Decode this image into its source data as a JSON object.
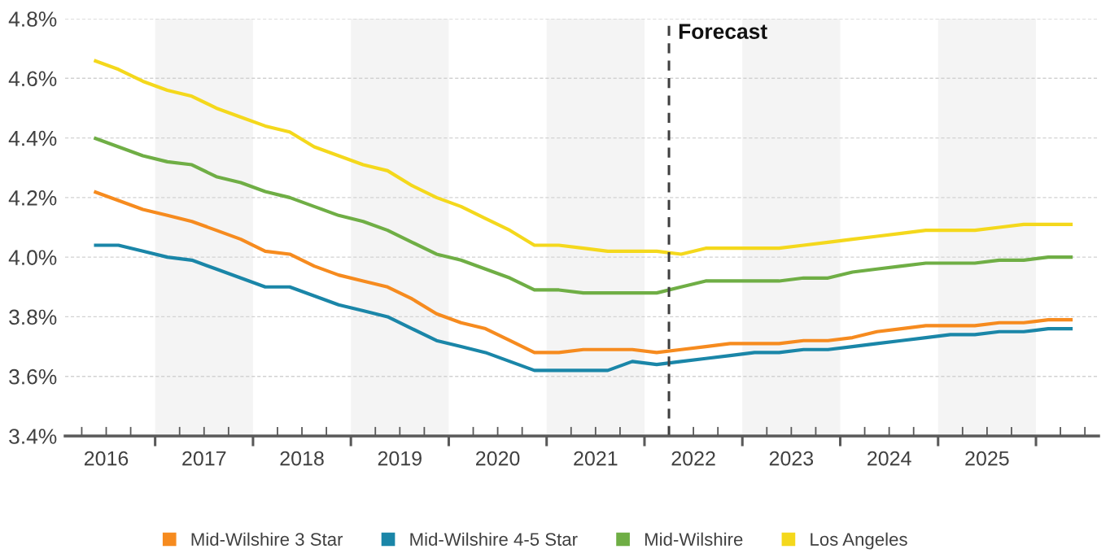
{
  "chart_data": {
    "type": "line",
    "x": [
      2016.375,
      2016.625,
      2016.875,
      2017.125,
      2017.375,
      2017.625,
      2017.875,
      2018.125,
      2018.375,
      2018.625,
      2018.875,
      2019.125,
      2019.375,
      2019.625,
      2019.875,
      2020.125,
      2020.375,
      2020.625,
      2020.875,
      2021.125,
      2021.375,
      2021.625,
      2021.875,
      2022.125,
      2022.375,
      2022.625,
      2022.875,
      2023.125,
      2023.375,
      2023.625,
      2023.875,
      2024.125,
      2024.375,
      2024.625,
      2024.875,
      2025.125,
      2025.375,
      2025.625,
      2025.875,
      2026.125,
      2026.375
    ],
    "series": [
      {
        "name": "Mid-Wilshire 3 Star",
        "color": "#f68b1f",
        "values": [
          4.22,
          4.19,
          4.16,
          4.14,
          4.12,
          4.09,
          4.06,
          4.02,
          4.01,
          3.97,
          3.94,
          3.92,
          3.9,
          3.86,
          3.81,
          3.78,
          3.76,
          3.72,
          3.68,
          3.68,
          3.69,
          3.69,
          3.69,
          3.68,
          3.69,
          3.7,
          3.71,
          3.71,
          3.71,
          3.72,
          3.72,
          3.73,
          3.75,
          3.76,
          3.77,
          3.77,
          3.77,
          3.78,
          3.78,
          3.79,
          3.79
        ]
      },
      {
        "name": "Mid-Wilshire 4-5 Star",
        "color": "#1a86a8",
        "values": [
          4.04,
          4.04,
          4.02,
          4.0,
          3.99,
          3.96,
          3.93,
          3.9,
          3.9,
          3.87,
          3.84,
          3.82,
          3.8,
          3.76,
          3.72,
          3.7,
          3.68,
          3.65,
          3.62,
          3.62,
          3.62,
          3.62,
          3.65,
          3.64,
          3.65,
          3.66,
          3.67,
          3.68,
          3.68,
          3.69,
          3.69,
          3.7,
          3.71,
          3.72,
          3.73,
          3.74,
          3.74,
          3.75,
          3.75,
          3.76,
          3.76
        ]
      },
      {
        "name": "Mid-Wilshire",
        "color": "#6fae45",
        "values": [
          4.4,
          4.37,
          4.34,
          4.32,
          4.31,
          4.27,
          4.25,
          4.22,
          4.2,
          4.17,
          4.14,
          4.12,
          4.09,
          4.05,
          4.01,
          3.99,
          3.96,
          3.93,
          3.89,
          3.89,
          3.88,
          3.88,
          3.88,
          3.88,
          3.9,
          3.92,
          3.92,
          3.92,
          3.92,
          3.93,
          3.93,
          3.95,
          3.96,
          3.97,
          3.98,
          3.98,
          3.98,
          3.99,
          3.99,
          4.0,
          4.0
        ]
      },
      {
        "name": "Los Angeles",
        "color": "#f4d81c",
        "values": [
          4.66,
          4.63,
          4.59,
          4.56,
          4.54,
          4.5,
          4.47,
          4.44,
          4.42,
          4.37,
          4.34,
          4.31,
          4.29,
          4.24,
          4.2,
          4.17,
          4.13,
          4.09,
          4.04,
          4.04,
          4.03,
          4.02,
          4.02,
          4.02,
          4.01,
          4.03,
          4.03,
          4.03,
          4.03,
          4.04,
          4.05,
          4.06,
          4.07,
          4.08,
          4.09,
          4.09,
          4.09,
          4.1,
          4.11,
          4.11,
          4.11
        ]
      }
    ],
    "xlim": [
      2016.08,
      2026.64
    ],
    "ylim": [
      3.4,
      4.8
    ],
    "xticks": [
      {
        "value": 2016.25,
        "label": null
      },
      {
        "value": 2016.5,
        "label": "2016"
      },
      {
        "value": 2016.75,
        "label": null
      },
      {
        "value": 2017,
        "label": null
      },
      {
        "value": 2017.25,
        "label": null
      },
      {
        "value": 2017.5,
        "label": "2017"
      },
      {
        "value": 2017.75,
        "label": null
      },
      {
        "value": 2018,
        "label": null
      },
      {
        "value": 2018.25,
        "label": null
      },
      {
        "value": 2018.5,
        "label": "2018"
      },
      {
        "value": 2018.75,
        "label": null
      },
      {
        "value": 2019,
        "label": null
      },
      {
        "value": 2019.25,
        "label": null
      },
      {
        "value": 2019.5,
        "label": "2019"
      },
      {
        "value": 2019.75,
        "label": null
      },
      {
        "value": 2020,
        "label": null
      },
      {
        "value": 2020.25,
        "label": null
      },
      {
        "value": 2020.5,
        "label": "2020"
      },
      {
        "value": 2020.75,
        "label": null
      },
      {
        "value": 2021,
        "label": null
      },
      {
        "value": 2021.25,
        "label": null
      },
      {
        "value": 2021.5,
        "label": "2021"
      },
      {
        "value": 2021.75,
        "label": null
      },
      {
        "value": 2022,
        "label": null
      },
      {
        "value": 2022.25,
        "label": null
      },
      {
        "value": 2022.5,
        "label": "2022"
      },
      {
        "value": 2022.75,
        "label": null
      },
      {
        "value": 2023,
        "label": null
      },
      {
        "value": 2023.25,
        "label": null
      },
      {
        "value": 2023.5,
        "label": "2023"
      },
      {
        "value": 2023.75,
        "label": null
      },
      {
        "value": 2024,
        "label": null
      },
      {
        "value": 2024.25,
        "label": null
      },
      {
        "value": 2024.5,
        "label": "2024"
      },
      {
        "value": 2024.75,
        "label": null
      },
      {
        "value": 2025,
        "label": null
      },
      {
        "value": 2025.25,
        "label": null
      },
      {
        "value": 2025.5,
        "label": "2025"
      },
      {
        "value": 2025.75,
        "label": null
      },
      {
        "value": 2026,
        "label": null
      },
      {
        "value": 2026.25,
        "label": null
      },
      {
        "value": 2026.5,
        "label": null
      }
    ],
    "yticks": [
      {
        "value": 3.4,
        "label": "3.4%"
      },
      {
        "value": 3.6,
        "label": "3.6%"
      },
      {
        "value": 3.8,
        "label": "3.8%"
      },
      {
        "value": 4.0,
        "label": "4.0%"
      },
      {
        "value": 4.2,
        "label": "4.2%"
      },
      {
        "value": 4.4,
        "label": "4.4%"
      },
      {
        "value": 4.6,
        "label": "4.6%"
      },
      {
        "value": 4.8,
        "label": "4.8%"
      }
    ],
    "grid": "y",
    "legend": "bottom",
    "ref_lines": [
      {
        "axis": "x",
        "value": 2022.25,
        "label": "Forecast",
        "color": "#3f3f3f",
        "line_style": "dashed"
      }
    ],
    "bands": [
      {
        "axis": "x",
        "from": 2017,
        "to": 2018,
        "color": "#f4f4f4"
      },
      {
        "axis": "x",
        "from": 2019,
        "to": 2020,
        "color": "#f4f4f4"
      },
      {
        "axis": "x",
        "from": 2021,
        "to": 2022,
        "color": "#f4f4f4"
      },
      {
        "axis": "x",
        "from": 2023,
        "to": 2024,
        "color": "#f4f4f4"
      },
      {
        "axis": "x",
        "from": 2025,
        "to": 2026,
        "color": "#f4f4f4"
      }
    ]
  }
}
